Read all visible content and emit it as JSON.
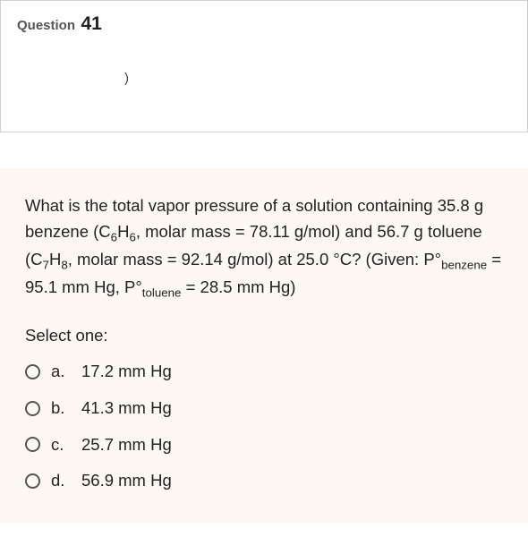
{
  "header": {
    "label": "Question",
    "number": "41",
    "stray": ")"
  },
  "stem": {
    "intro": "What is the total vapor pressure of a solution containing 35.8 g benzene (C",
    "f_benzene_a": "6",
    "mid1": "H",
    "f_benzene_b": "6",
    "mid2": ", molar mass = 78.11 g/mol) and 56.7 g toluene (C",
    "f_tol_a": "7",
    "mid3": "H",
    "f_tol_b": "8",
    "mid4": ", molar mass = 92.14 g/mol) at 25.0 °C? (Given: P°",
    "sub_benz": "benzene",
    "mid5": " = 95.1 mm Hg, P°",
    "sub_tol": "toluene",
    "mid6": " = 28.5 mm Hg)"
  },
  "select_label": "Select one:",
  "options": [
    {
      "letter": "a.",
      "text": "17.2 mm Hg"
    },
    {
      "letter": "b.",
      "text": "41.3 mm Hg"
    },
    {
      "letter": "c.",
      "text": "25.7 mm Hg"
    },
    {
      "letter": "d.",
      "text": "56.9 mm Hg"
    }
  ],
  "colors": {
    "header_border": "#d0d0d0",
    "body_bg": "#fdf8f2",
    "text": "#222222",
    "radio_border": "#555555"
  }
}
